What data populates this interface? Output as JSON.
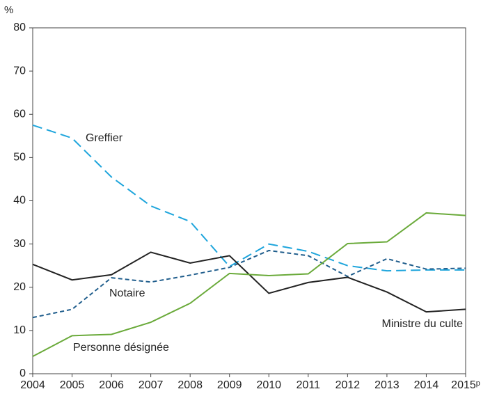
{
  "chart_data": {
    "type": "line",
    "y_label": "%",
    "categories": [
      "2004",
      "2005",
      "2006",
      "2007",
      "2008",
      "2009",
      "2010",
      "2011",
      "2012",
      "2013",
      "2014",
      "2015ᵖ"
    ],
    "series": [
      {
        "name": "Greffier",
        "color": "#1ea5dc",
        "dash": "14 7",
        "values": [
          57.5,
          54.5,
          45.5,
          38.8,
          35.2,
          24.8,
          30.0,
          28.3,
          25.0,
          23.8,
          24.0,
          24.0
        ]
      },
      {
        "name": "Notaire",
        "color": "#1f5d8c",
        "dash": "6 4",
        "values": [
          13.0,
          14.9,
          22.2,
          21.2,
          22.8,
          24.6,
          28.5,
          27.3,
          22.5,
          26.6,
          24.2,
          24.4
        ]
      },
      {
        "name": "Ministre du culte",
        "color": "#222222",
        "dash": "none",
        "values": [
          25.3,
          21.7,
          22.9,
          28.1,
          25.6,
          27.3,
          18.6,
          21.1,
          22.3,
          18.9,
          14.3,
          14.9
        ]
      },
      {
        "name": "Personne désignée",
        "color": "#6aaa3a",
        "dash": "none",
        "values": [
          4.0,
          8.8,
          9.1,
          11.9,
          16.3,
          23.2,
          22.7,
          23.1,
          30.1,
          30.5,
          37.2,
          36.6
        ]
      }
    ],
    "ylim": [
      0,
      80
    ],
    "yticks": [
      0,
      10,
      20,
      30,
      40,
      50,
      60,
      70,
      80
    ]
  }
}
